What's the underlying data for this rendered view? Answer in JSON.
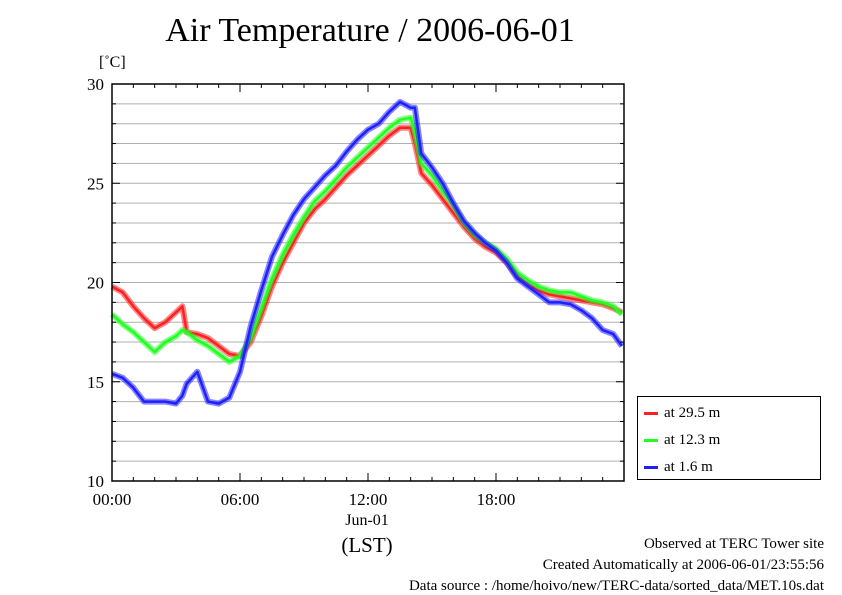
{
  "title": "Air Temperature / 2006-06-01",
  "unit_label": "[˚C]",
  "x_date_label": "Jun-01",
  "x_axis_label": "(LST)",
  "footer": {
    "site": "Observed at TERC Tower site",
    "created": "Created Automatically at 2006-06-01/23:55:56",
    "source": "Data source : /home/hoivo/new/TERC-data/sorted_data/MET.10s.dat"
  },
  "colors": {
    "s1": "#ff2020",
    "s2": "#20ff20",
    "s3": "#2020ff"
  },
  "chart_data": {
    "type": "line",
    "title": "Air Temperature / 2006-06-01",
    "xlabel": "(LST)",
    "ylabel": "[˚C]",
    "xlim": [
      0,
      24
    ],
    "ylim": [
      10,
      30
    ],
    "xticks": [
      "00:00",
      "06:00",
      "12:00",
      "18:00"
    ],
    "yticks": [
      "10",
      "15",
      "20",
      "25",
      "30"
    ],
    "grid": "horizontal",
    "legend_position": "right",
    "x": [
      0,
      0.5,
      1,
      1.5,
      2,
      2.5,
      3,
      3.3,
      3.5,
      4,
      4.5,
      5,
      5.5,
      6,
      6.5,
      7,
      7.5,
      8,
      8.5,
      9,
      9.5,
      10,
      10.5,
      11,
      11.5,
      12,
      12.5,
      13,
      13.5,
      14,
      14.2,
      14.5,
      15,
      15.5,
      16,
      16.5,
      17,
      17.5,
      18,
      18.5,
      19,
      19.5,
      20,
      20.5,
      21,
      21.5,
      22,
      22.5,
      23,
      23.5,
      23.9
    ],
    "series": [
      {
        "name": "at 29.5 m",
        "color": "#ff2020",
        "values": [
          19.8,
          19.5,
          18.8,
          18.2,
          17.7,
          18.0,
          18.5,
          18.8,
          17.5,
          17.4,
          17.2,
          16.8,
          16.4,
          16.3,
          17.0,
          18.3,
          19.8,
          21.0,
          22.0,
          23.0,
          23.7,
          24.2,
          24.8,
          25.4,
          25.9,
          26.4,
          26.9,
          27.4,
          27.8,
          27.8,
          27.0,
          25.5,
          24.9,
          24.2,
          23.5,
          22.8,
          22.2,
          21.8,
          21.5,
          21.0,
          20.3,
          19.9,
          19.6,
          19.4,
          19.3,
          19.2,
          19.1,
          19.0,
          18.9,
          18.7,
          18.5
        ]
      },
      {
        "name": "at 12.3 m",
        "color": "#20ff20",
        "values": [
          18.4,
          17.9,
          17.5,
          17.0,
          16.5,
          17.0,
          17.3,
          17.6,
          17.5,
          17.1,
          16.8,
          16.4,
          16.0,
          16.3,
          17.2,
          18.7,
          20.2,
          21.4,
          22.4,
          23.3,
          24.1,
          24.6,
          25.2,
          25.8,
          26.3,
          26.8,
          27.3,
          27.8,
          28.2,
          28.3,
          27.6,
          26.0,
          25.4,
          24.6,
          23.9,
          23.0,
          22.4,
          22.0,
          21.7,
          21.2,
          20.5,
          20.1,
          19.8,
          19.6,
          19.5,
          19.5,
          19.3,
          19.1,
          19.0,
          18.8,
          18.4
        ]
      },
      {
        "name": "at 1.6 m",
        "color": "#2020ff",
        "values": [
          15.4,
          15.2,
          14.7,
          14.0,
          14.0,
          14.0,
          13.9,
          14.3,
          14.9,
          15.5,
          14.0,
          13.9,
          14.2,
          15.5,
          17.8,
          19.6,
          21.3,
          22.4,
          23.4,
          24.2,
          24.8,
          25.4,
          25.9,
          26.6,
          27.2,
          27.7,
          28.0,
          28.6,
          29.1,
          28.8,
          28.8,
          26.5,
          25.8,
          25.0,
          24.0,
          23.1,
          22.5,
          22.0,
          21.6,
          21.0,
          20.2,
          19.8,
          19.4,
          19.0,
          19.0,
          18.9,
          18.6,
          18.2,
          17.6,
          17.4,
          16.8
        ]
      }
    ]
  }
}
